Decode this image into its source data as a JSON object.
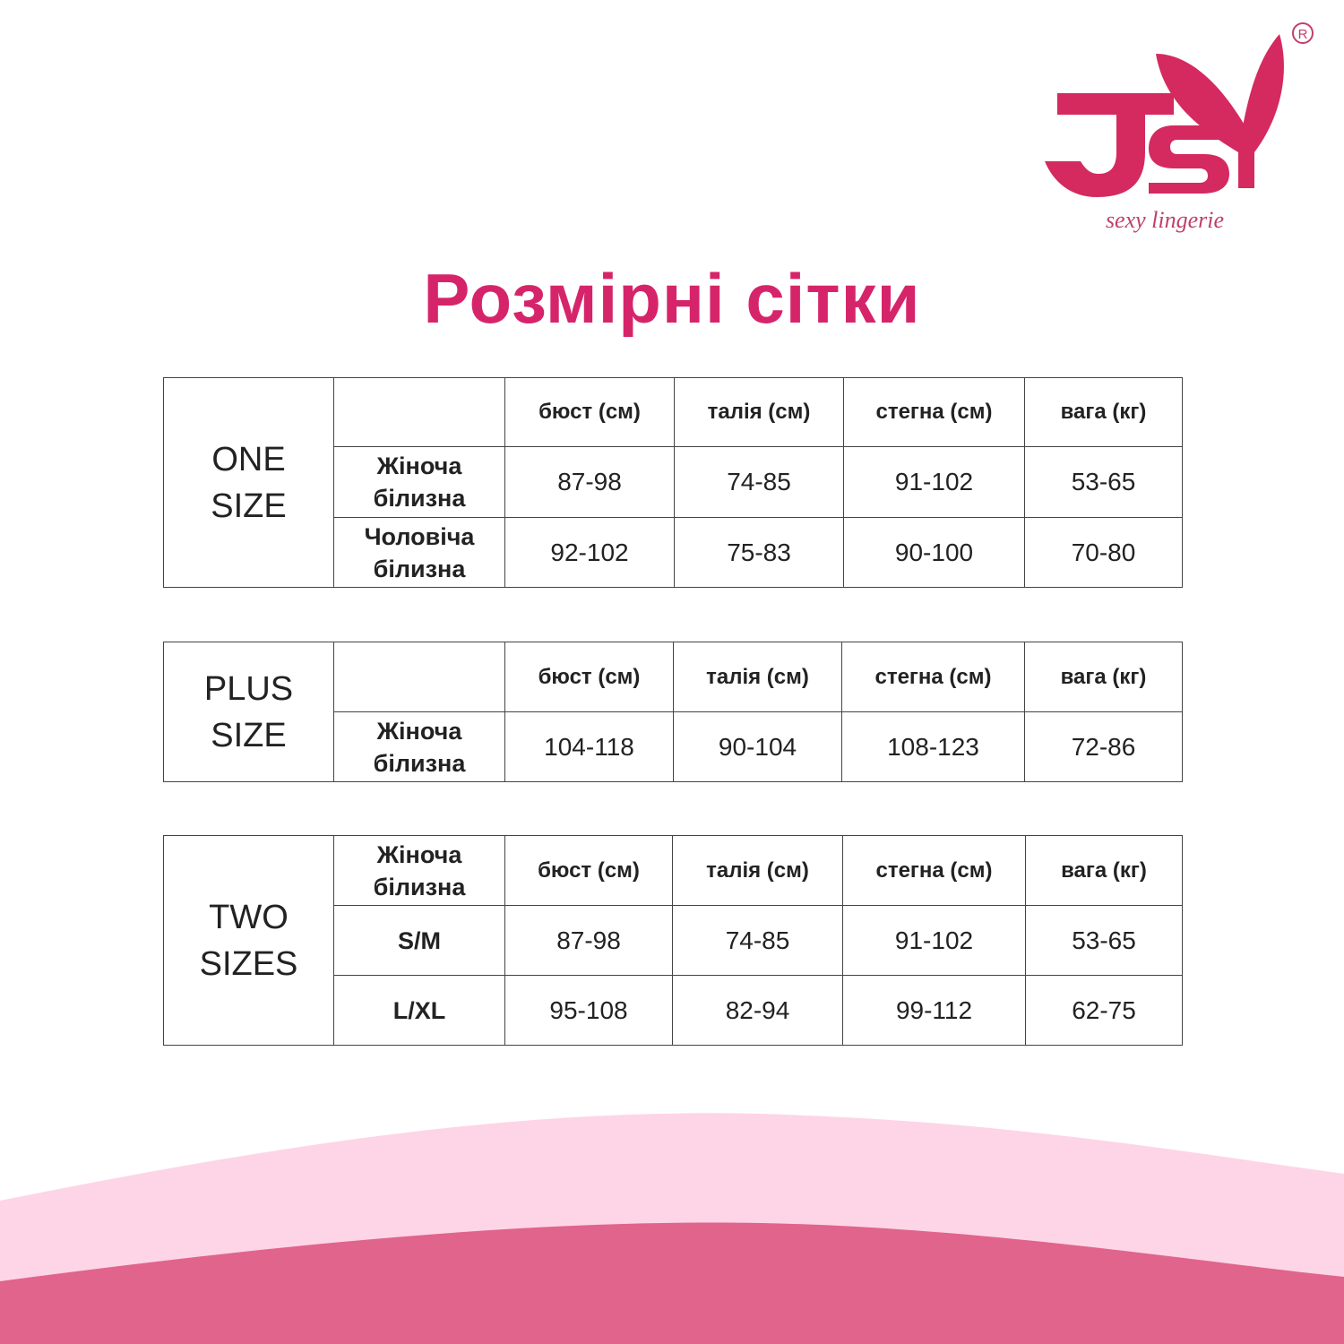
{
  "brand": {
    "logo_text": "JSY",
    "tagline": "sexy lingerie",
    "registered": "®",
    "color": "#d6246a"
  },
  "title": "Розмірні сітки",
  "columns": [
    "бюст (см)",
    "талія (см)",
    "стегна (см)",
    "вага (кг)"
  ],
  "one_size": {
    "label_line1": "ONE",
    "label_line2": "SIZE",
    "rows": [
      {
        "name_line1": "Жіноча",
        "name_line2": "білизна",
        "values": [
          "87-98",
          "74-85",
          "91-102",
          "53-65"
        ]
      },
      {
        "name_line1": "Чоловіча",
        "name_line2": "білизна",
        "values": [
          "92-102",
          "75-83",
          "90-100",
          "70-80"
        ]
      }
    ]
  },
  "plus_size": {
    "label_line1": "PLUS",
    "label_line2": "SIZE",
    "rows": [
      {
        "name_line1": "Жіноча",
        "name_line2": "білизна",
        "values": [
          "104-118",
          "90-104",
          "108-123",
          "72-86"
        ]
      }
    ]
  },
  "two_sizes": {
    "label_line1": "TWO",
    "label_line2": "SIZES",
    "header_line1": "Жіноча",
    "header_line2": "білизна",
    "rows": [
      {
        "name": "S/M",
        "values": [
          "87-98",
          "74-85",
          "91-102",
          "53-65"
        ]
      },
      {
        "name": "L/XL",
        "values": [
          "95-108",
          "82-94",
          "99-112",
          "62-75"
        ]
      }
    ]
  },
  "colors": {
    "accent": "#d6246a",
    "wave_light": "#fdd5e6",
    "wave_dark": "#e0648c"
  }
}
